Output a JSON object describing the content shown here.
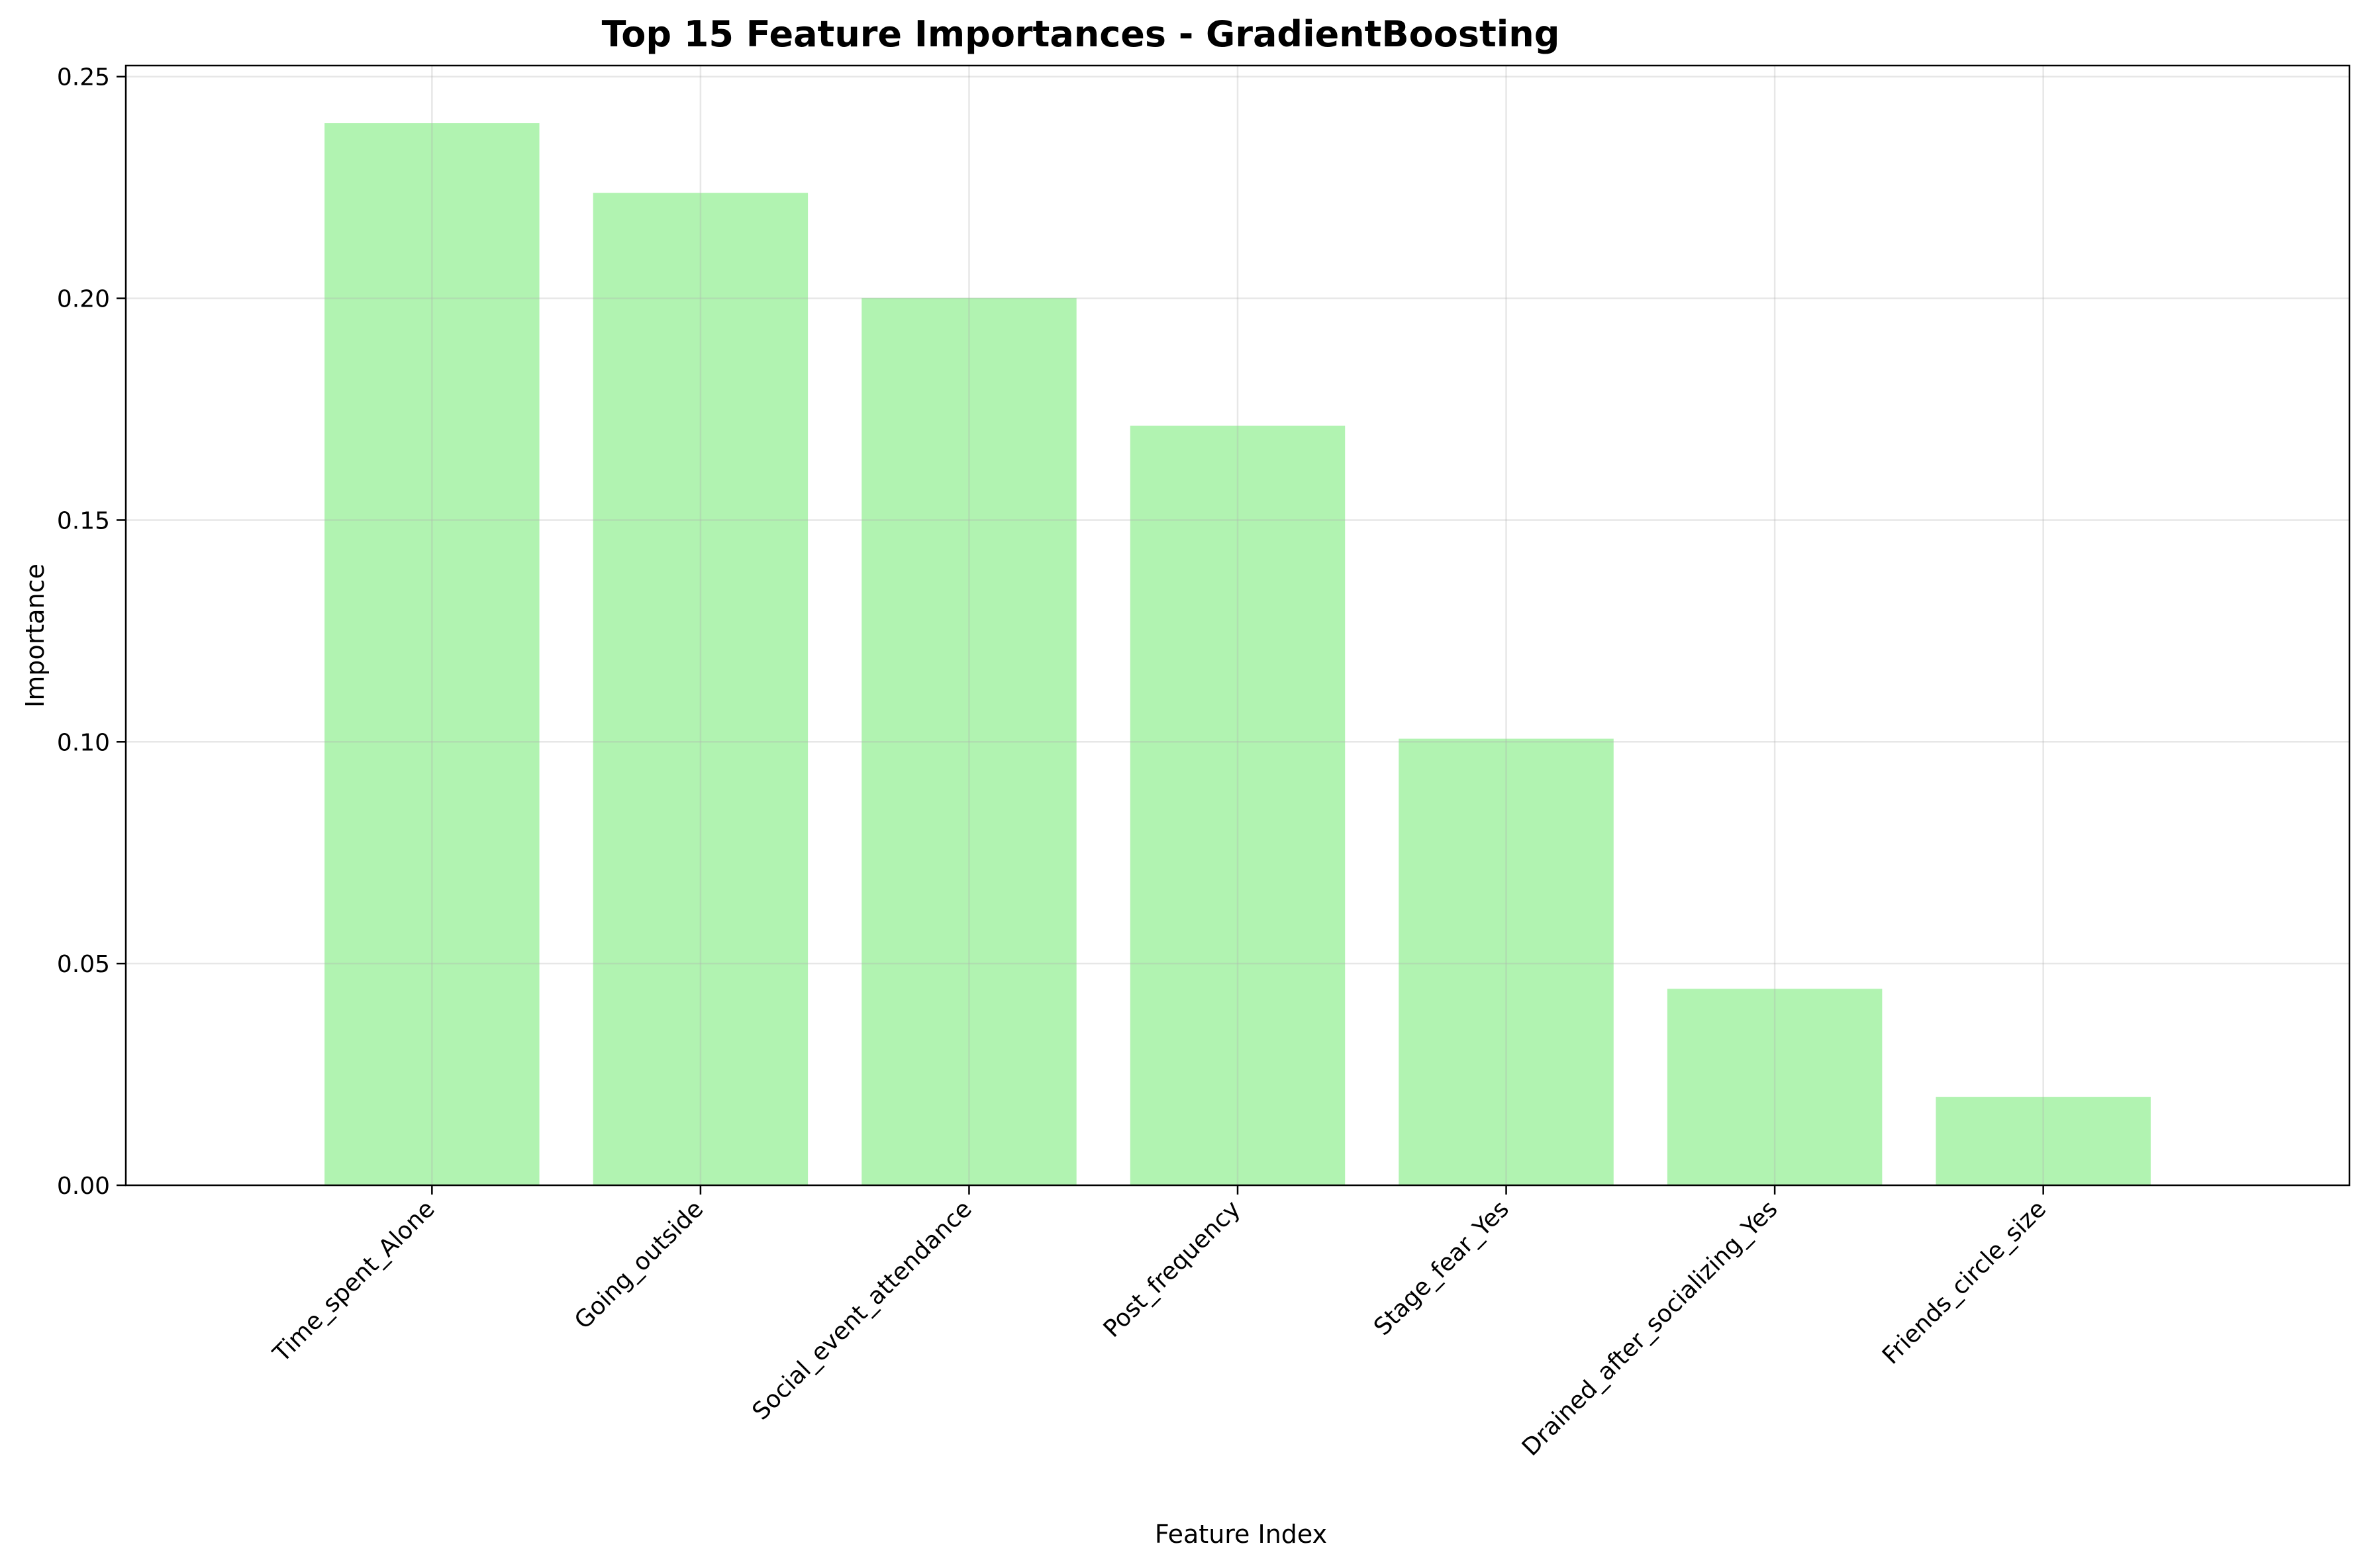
{
  "chart_data": {
    "type": "bar",
    "title": "Top 15 Feature Importances - GradientBoosting",
    "xlabel": "Feature Index",
    "ylabel": "Importance",
    "categories": [
      "Time_spent_Alone",
      "Going_outside",
      "Social_event_attendance",
      "Post_frequency",
      "Stage_fear_Yes",
      "Drained_after_socializing_Yes",
      "Friends_circle_size"
    ],
    "values": [
      0.2395,
      0.2238,
      0.2001,
      0.1713,
      0.1007,
      0.0443,
      0.0199
    ],
    "ylim": [
      0,
      0.2525
    ],
    "yticks": [
      0.0,
      0.05,
      0.1,
      0.15,
      0.2,
      0.25
    ],
    "ytick_labels": [
      "0.00",
      "0.05",
      "0.10",
      "0.15",
      "0.20",
      "0.25"
    ],
    "grid": true,
    "bar_color": "#90EE90"
  }
}
